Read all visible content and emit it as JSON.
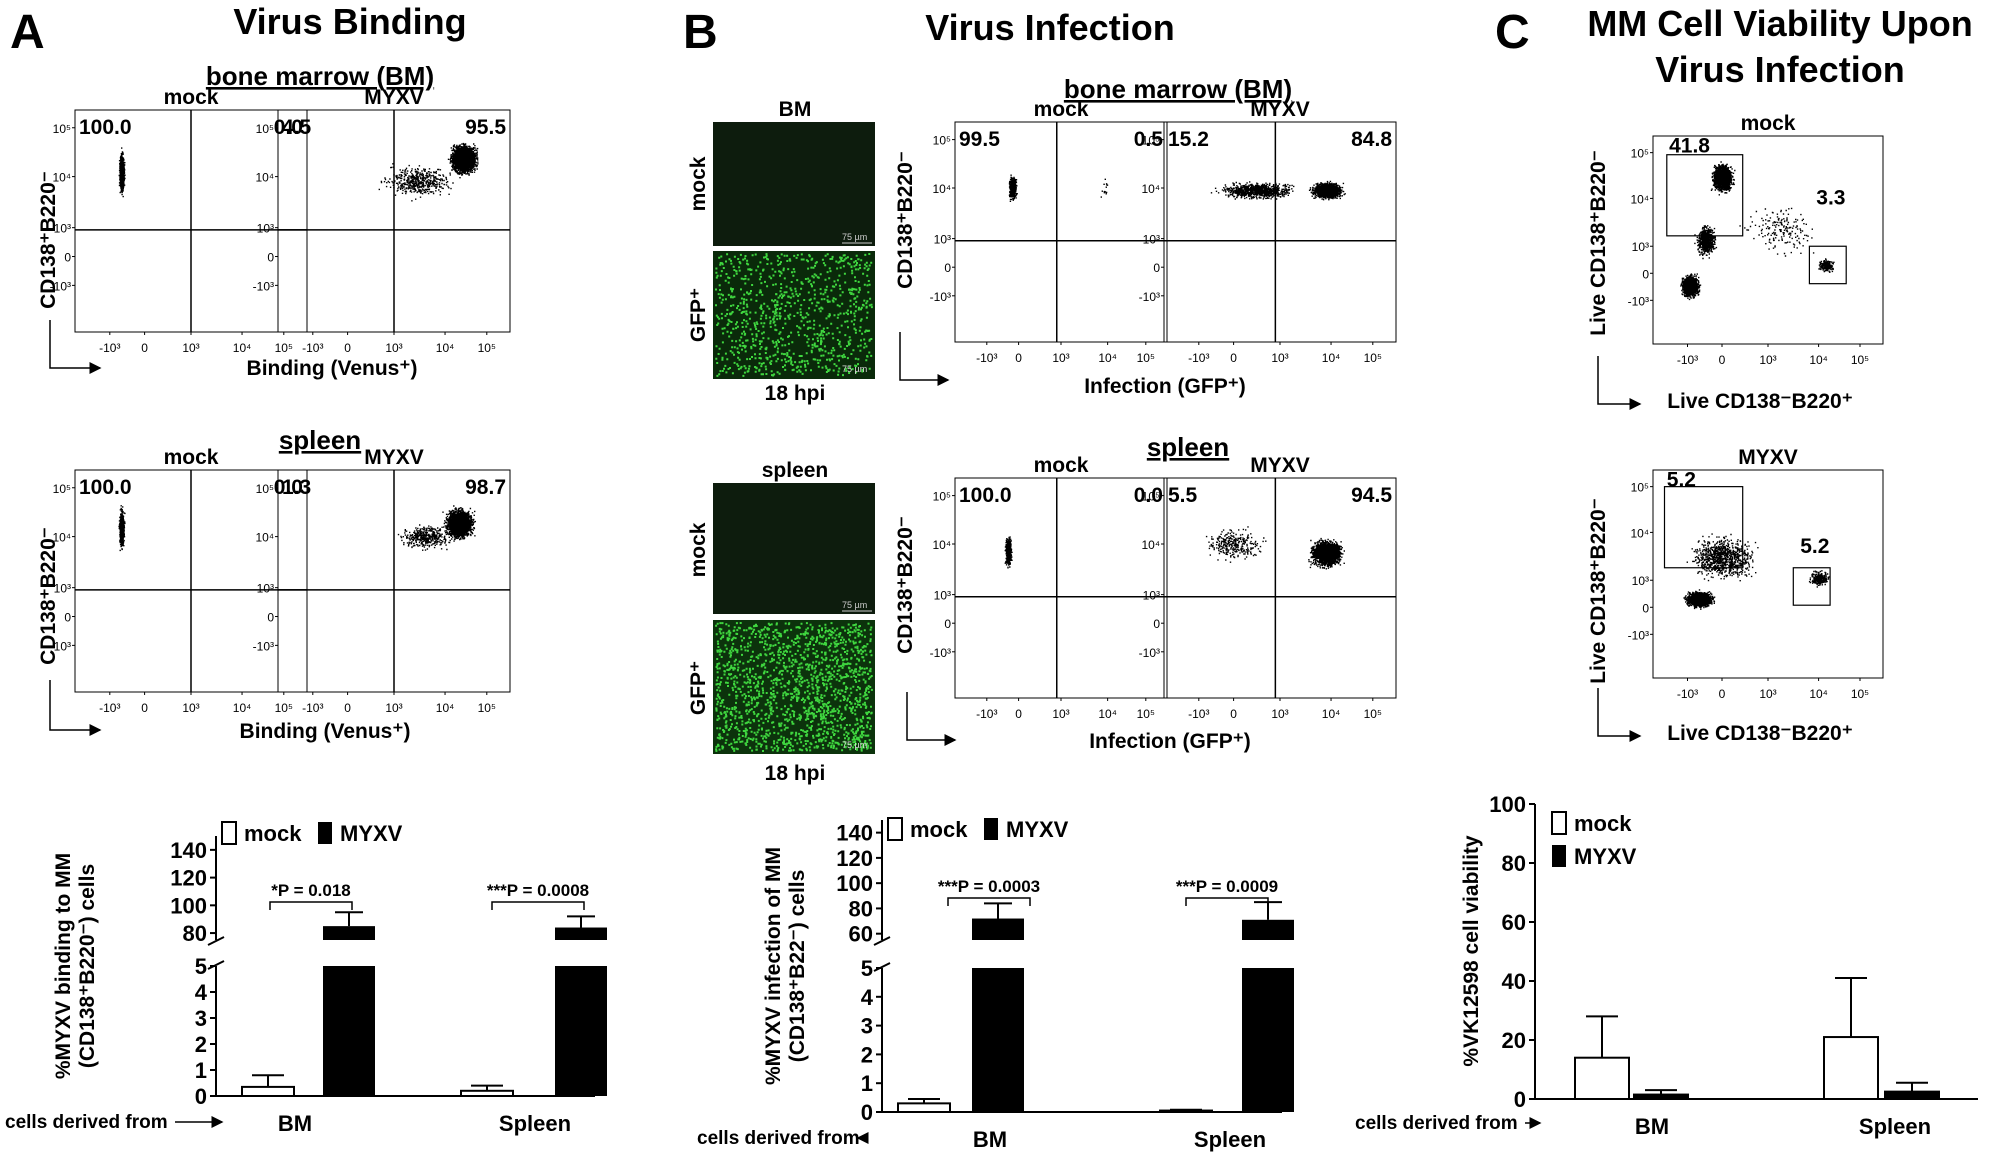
{
  "panels": {
    "A": {
      "letter": "A",
      "title": "Virus Binding",
      "flow": {
        "section_bm": "bone marrow (BM)",
        "section_spleen": "spleen",
        "ylabel": "CD138⁺B220⁻",
        "xlabel": "Binding (Venus⁺)",
        "plots": [
          {
            "label": "mock",
            "left": "100.0",
            "right": "0.0"
          },
          {
            "label": "MYXV",
            "left": "4.5",
            "right": "95.5"
          },
          {
            "label": "mock",
            "left": "100.0",
            "right": "0.0"
          },
          {
            "label": "MYXV",
            "left": "1.3",
            "right": "98.7"
          }
        ]
      }
    },
    "B": {
      "letter": "B",
      "title": "Virus Infection",
      "micro": {
        "top_label_bm": "BM",
        "top_label_spleen": "spleen",
        "row_mock": "mock",
        "row_gfp": "GFP⁺",
        "bottom_label": "18 hpi",
        "scale_bar": "75 µm"
      },
      "flow": {
        "section_bm": "bone marrow (BM)",
        "section_spleen": "spleen",
        "ylabel": "CD138⁺B220⁻",
        "xlabel": "Infection (GFP⁺)",
        "plots": [
          {
            "label": "mock",
            "left": "99.5",
            "right": "0.5"
          },
          {
            "label": "MYXV",
            "left": "15.2",
            "right": "84.8"
          },
          {
            "label": "mock",
            "left": "100.0",
            "right": "0.0"
          },
          {
            "label": "MYXV",
            "left": "5.5",
            "right": "94.5"
          }
        ]
      }
    },
    "C": {
      "letter": "C",
      "title_line1": "MM Cell Viability Upon",
      "title_line2": "Virus Infection",
      "flow": {
        "ylabel": "Live CD138⁺B220⁻",
        "xlabel": "Live CD138⁻B220⁺",
        "plots": [
          {
            "label": "mock",
            "gate1": "41.8",
            "gate2": "3.3"
          },
          {
            "label": "MYXV",
            "gate1": "5.2",
            "gate2": "5.2"
          }
        ]
      }
    }
  },
  "axis_ticks": {
    "flow": [
      "-10³",
      "0",
      "10³",
      "10⁴",
      "10⁵"
    ]
  },
  "common": {
    "cells_derived_from": "cells derived from",
    "legend_mock": "mock",
    "legend_myxv": "MYXV"
  },
  "chart_data": [
    {
      "type": "bar",
      "panel": "A",
      "categories": [
        "BM",
        "Spleen"
      ],
      "series": [
        {
          "name": "mock",
          "values": [
            0.35,
            0.2
          ],
          "errors": [
            0.45,
            0.2
          ]
        },
        {
          "name": "MYXV",
          "values": [
            85,
            84
          ],
          "errors": [
            10,
            8
          ]
        }
      ],
      "ylabel": "%MYXV binding to MM (CD138⁺B220⁻) cells",
      "y_ticks_low": [
        "0",
        "1",
        "2",
        "3",
        "4",
        "5"
      ],
      "y_ticks_high": [
        "80",
        "100",
        "120",
        "140"
      ],
      "axis_break": [
        5,
        75
      ],
      "ylim": [
        0,
        150
      ],
      "stats": [
        "*P = 0.018",
        "***P = 0.0008"
      ],
      "legend": "top-left"
    },
    {
      "type": "bar",
      "panel": "B",
      "categories": [
        "BM",
        "Spleen"
      ],
      "series": [
        {
          "name": "mock",
          "values": [
            0.3,
            0.05
          ],
          "errors": [
            0.15,
            0.03
          ]
        },
        {
          "name": "MYXV",
          "values": [
            72,
            71
          ],
          "errors": [
            12,
            14
          ]
        }
      ],
      "ylabel": "%MYXV infection of MM (CD138⁺B22⁻) cells",
      "y_ticks_low": [
        "0",
        "1",
        "2",
        "3",
        "4",
        "5"
      ],
      "y_ticks_high": [
        "60",
        "80",
        "100",
        "120",
        "140"
      ],
      "axis_break": [
        5,
        55
      ],
      "ylim": [
        0,
        150
      ],
      "stats": [
        "***P = 0.0003",
        "***P = 0.0009"
      ],
      "legend": "top-left"
    },
    {
      "type": "bar",
      "panel": "C",
      "categories": [
        "BM",
        "Spleen"
      ],
      "series": [
        {
          "name": "mock",
          "values": [
            14,
            21
          ],
          "errors": [
            14,
            20
          ]
        },
        {
          "name": "MYXV",
          "values": [
            1.5,
            2.5
          ],
          "errors": [
            1.5,
            3
          ]
        }
      ],
      "ylabel": "%VK12598 cell viability",
      "y_ticks": [
        "0",
        "20",
        "40",
        "60",
        "80",
        "100"
      ],
      "ylim": [
        0,
        100
      ],
      "legend": "top-left"
    }
  ]
}
